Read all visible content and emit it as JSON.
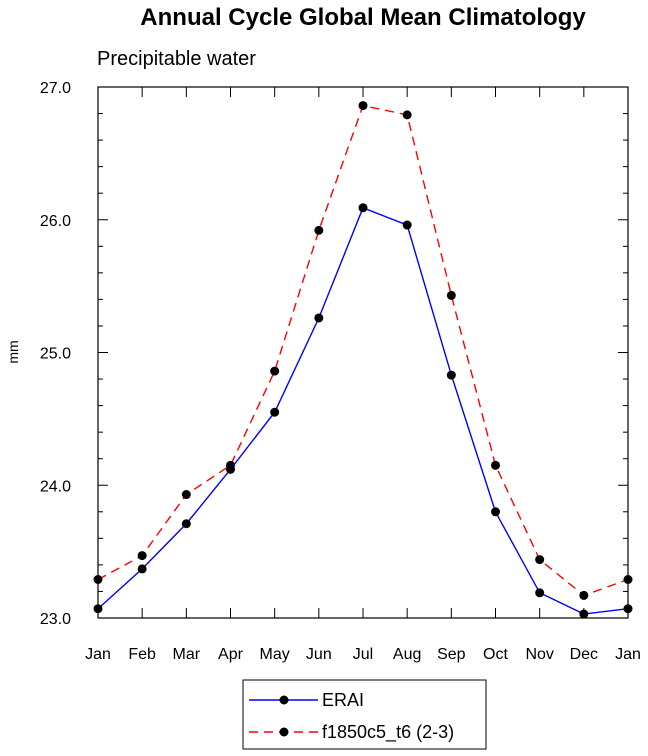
{
  "chart_data": {
    "type": "line",
    "title": "Annual Cycle Global Mean Climatology",
    "subtitle": "Precipitable water",
    "xlabel": "",
    "ylabel": "mm",
    "categories": [
      "Jan",
      "Feb",
      "Mar",
      "Apr",
      "May",
      "Jun",
      "Jul",
      "Aug",
      "Sep",
      "Oct",
      "Nov",
      "Dec",
      "Jan"
    ],
    "ylim": [
      23.0,
      27.0
    ],
    "yticks": [
      "23.0",
      "24.0",
      "25.0",
      "26.0",
      "27.0"
    ],
    "grid": false,
    "legend_position": "bottom-center",
    "series": [
      {
        "name": "ERAI",
        "color": "#0000ff",
        "dash": "solid",
        "values": [
          23.07,
          23.37,
          23.71,
          24.12,
          24.55,
          25.26,
          26.09,
          25.96,
          24.83,
          23.8,
          23.19,
          23.03,
          23.07
        ]
      },
      {
        "name": "f1850c5_t6 (2-3)",
        "color": "#ff0000",
        "dash": "dashed",
        "values": [
          23.29,
          23.47,
          23.93,
          24.15,
          24.86,
          25.92,
          26.86,
          26.79,
          25.43,
          24.15,
          23.44,
          23.17,
          23.29
        ]
      }
    ]
  }
}
